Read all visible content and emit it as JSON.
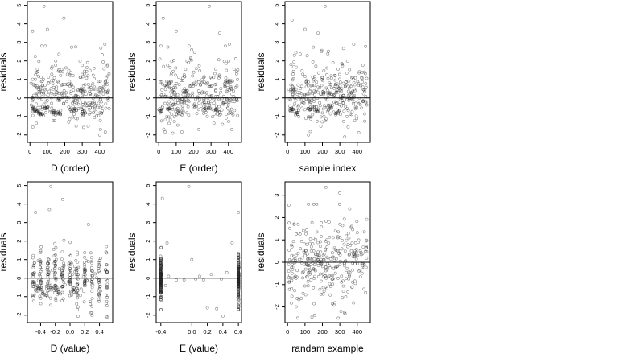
{
  "chart_data": [
    {
      "type": "scatter",
      "title": "",
      "xlabel": "D (order)",
      "ylabel": "residuals",
      "xlim": [
        -15,
        475
      ],
      "ylim": [
        -2.4,
        5.2
      ],
      "xticks": [
        0,
        100,
        200,
        300,
        400
      ],
      "yticks": [
        -2,
        -1,
        0,
        1,
        2,
        3,
        4,
        5
      ],
      "hline": 0,
      "marker": "open-circle",
      "clusters": [
        {
          "x": 20,
          "y": -0.6
        },
        {
          "x": 35,
          "y": -0.7
        },
        {
          "x": 55,
          "y": -0.9
        },
        {
          "x": 95,
          "y": -0.55
        },
        {
          "x": 130,
          "y": -0.75
        },
        {
          "x": 165,
          "y": -0.85
        },
        {
          "x": 250,
          "y": -0.65
        },
        {
          "x": 300,
          "y": -0.8
        }
      ],
      "highlights": [
        {
          "x": 80,
          "y": 4.95
        },
        {
          "x": 195,
          "y": 4.3
        },
        {
          "x": 15,
          "y": 3.6
        },
        {
          "x": 100,
          "y": 3.7
        },
        {
          "x": 430,
          "y": 2.9
        },
        {
          "x": 400,
          "y": -2.0
        }
      ]
    },
    {
      "type": "scatter",
      "title": "",
      "xlabel": "E (order)",
      "ylabel": "residuals",
      "xlim": [
        -15,
        475
      ],
      "ylim": [
        -2.4,
        5.2
      ],
      "xticks": [
        0,
        100,
        200,
        300,
        400
      ],
      "yticks": [
        -2,
        -1,
        0,
        1,
        2,
        3,
        4,
        5
      ],
      "hline": 0,
      "marker": "open-circle",
      "clusters": [
        {
          "x": 10,
          "y": -0.7
        },
        {
          "x": 60,
          "y": -0.6
        },
        {
          "x": 110,
          "y": -0.75
        },
        {
          "x": 270,
          "y": -0.55
        },
        {
          "x": 330,
          "y": -0.65
        }
      ],
      "highlights": [
        {
          "x": 290,
          "y": 4.95
        },
        {
          "x": 25,
          "y": 4.3
        },
        {
          "x": 100,
          "y": 3.6
        },
        {
          "x": 350,
          "y": 3.5
        },
        {
          "x": 405,
          "y": 2.9
        },
        {
          "x": 230,
          "y": -1.7
        }
      ]
    },
    {
      "type": "scatter",
      "title": "",
      "xlabel": "sample index",
      "ylabel": "residuals",
      "xlim": [
        -15,
        475
      ],
      "ylim": [
        -2.4,
        5.2
      ],
      "xticks": [
        0,
        100,
        200,
        300,
        400
      ],
      "yticks": [
        -2,
        -1,
        0,
        1,
        2,
        3,
        4,
        5
      ],
      "hline": 0,
      "marker": "open-circle",
      "clusters": [
        {
          "x": 25,
          "y": -0.65
        },
        {
          "x": 60,
          "y": -0.8
        },
        {
          "x": 120,
          "y": -0.6
        },
        {
          "x": 170,
          "y": -0.7
        },
        {
          "x": 240,
          "y": -0.55
        },
        {
          "x": 285,
          "y": -0.75
        }
      ],
      "highlights": [
        {
          "x": 215,
          "y": 4.95
        },
        {
          "x": 25,
          "y": 4.2
        },
        {
          "x": 100,
          "y": 3.7
        },
        {
          "x": 175,
          "y": 3.5
        },
        {
          "x": 380,
          "y": 2.9
        },
        {
          "x": 120,
          "y": -2.0
        }
      ]
    },
    {
      "type": "scatter",
      "title": "",
      "xlabel": "D (value)",
      "ylabel": "residuals",
      "xlim": [
        -0.58,
        0.58
      ],
      "ylim": [
        -2.4,
        5.2
      ],
      "xticks": [
        -0.4,
        -0.2,
        0.0,
        0.2,
        0.4
      ],
      "xtick_labels": [
        "-0.4",
        "-0.2",
        "0.0",
        "0.2",
        "0.4"
      ],
      "yticks": [
        -2,
        -1,
        0,
        1,
        2,
        3,
        4,
        5
      ],
      "hline": 0,
      "marker": "open-circle",
      "columns": [
        -0.5,
        -0.4,
        -0.3,
        -0.2,
        -0.1,
        0.0,
        0.1,
        0.2,
        0.3,
        0.4,
        0.5
      ],
      "clusters": [
        {
          "x": -0.45,
          "y": -0.6
        },
        {
          "x": -0.35,
          "y": -0.8
        },
        {
          "x": -0.25,
          "y": -0.5
        },
        {
          "x": -0.15,
          "y": -0.75
        },
        {
          "x": 0.05,
          "y": -0.7
        }
      ],
      "highlights": [
        {
          "x": -0.26,
          "y": 4.95
        },
        {
          "x": -0.1,
          "y": 4.25
        },
        {
          "x": -0.47,
          "y": 3.55
        },
        {
          "x": -0.28,
          "y": 3.7
        },
        {
          "x": 0.25,
          "y": 2.9
        },
        {
          "x": 0.1,
          "y": -1.7
        }
      ]
    },
    {
      "type": "scatter",
      "title": "",
      "xlabel": "E (value)",
      "ylabel": "residuals",
      "xlim": [
        -0.46,
        0.64
      ],
      "ylim": [
        -2.4,
        5.2
      ],
      "xticks": [
        -0.4,
        0.0,
        0.2,
        0.4,
        0.6
      ],
      "xtick_labels": [
        "-0.4",
        "0.0",
        "0.2",
        "0.4",
        "0.6"
      ],
      "yticks": [
        -2,
        -1,
        0,
        1,
        2,
        3,
        4,
        5
      ],
      "hline": 0,
      "marker": "open-circle",
      "columns": [
        -0.4,
        0.6
      ],
      "sparse_points": [
        {
          "x": -0.32,
          "y": 1.9
        },
        {
          "x": -0.34,
          "y": -0.4
        },
        {
          "x": -0.3,
          "y": 0.1
        },
        {
          "x": -0.2,
          "y": -0.1
        },
        {
          "x": -0.1,
          "y": -0.1
        },
        {
          "x": 0.0,
          "y": 1.0
        },
        {
          "x": 0.05,
          "y": -0.05
        },
        {
          "x": 0.1,
          "y": 0.1
        },
        {
          "x": 0.15,
          "y": -0.1
        },
        {
          "x": 0.2,
          "y": -1.6
        },
        {
          "x": 0.25,
          "y": 0.2
        },
        {
          "x": 0.32,
          "y": -1.65
        },
        {
          "x": 0.38,
          "y": -0.05
        },
        {
          "x": 0.45,
          "y": 0.3
        },
        {
          "x": 0.52,
          "y": 1.9
        }
      ],
      "highlights": [
        {
          "x": -0.04,
          "y": 4.95
        },
        {
          "x": -0.38,
          "y": 4.3
        },
        {
          "x": 0.6,
          "y": 3.55
        },
        {
          "x": 0.4,
          "y": -2.05
        }
      ]
    },
    {
      "type": "scatter",
      "title": "",
      "xlabel": "randam example",
      "ylabel": "residuals",
      "xlim": [
        -15,
        475
      ],
      "ylim": [
        -2.7,
        3.6
      ],
      "xticks": [
        0,
        100,
        200,
        300,
        400
      ],
      "yticks": [
        -2,
        -1,
        0,
        1,
        2,
        3
      ],
      "hline": 0,
      "marker": "open-circle",
      "highlights": [
        {
          "x": 220,
          "y": 3.35
        },
        {
          "x": 300,
          "y": 3.1
        },
        {
          "x": 140,
          "y": -2.45
        },
        {
          "x": 330,
          "y": -2.3
        }
      ]
    }
  ]
}
